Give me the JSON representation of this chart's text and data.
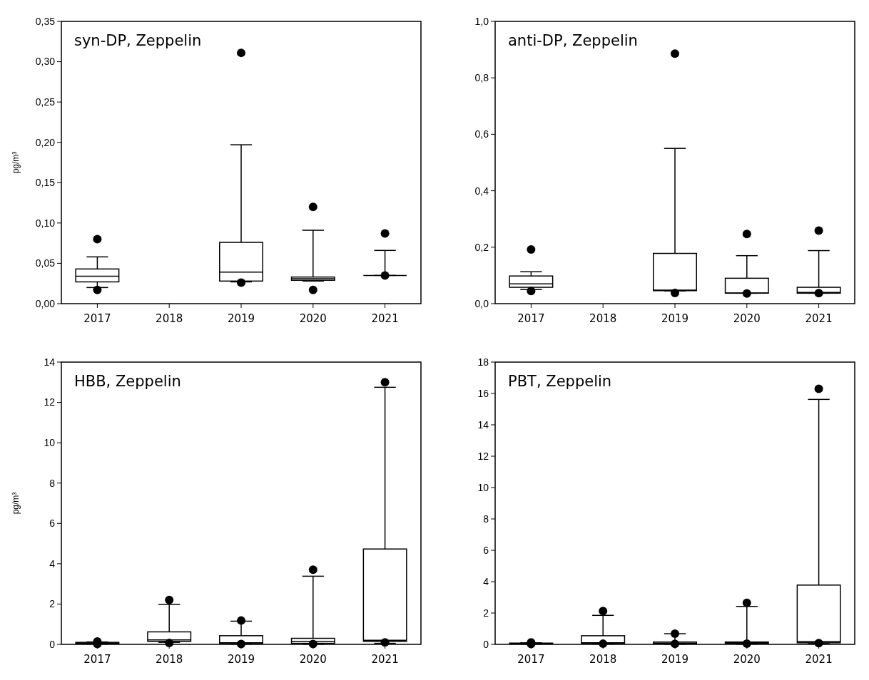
{
  "chart_data": [
    {
      "type": "box",
      "title": "syn-DP,  Zeppelin",
      "ylabel": "pg/m³",
      "categories": [
        "2017",
        "2018",
        "2019",
        "2020",
        "2021"
      ],
      "ylim": [
        0,
        0.35
      ],
      "yticks": [
        {
          "value": 0,
          "label": "0,00"
        },
        {
          "value": 0.05,
          "label": "0,05"
        },
        {
          "value": 0.1,
          "label": "0,10"
        },
        {
          "value": 0.15,
          "label": "0,15"
        },
        {
          "value": 0.2,
          "label": "0,20"
        },
        {
          "value": 0.25,
          "label": "0,25"
        },
        {
          "value": 0.3,
          "label": "0,30"
        },
        {
          "value": 0.35,
          "label": "0,35"
        }
      ],
      "boxes": [
        {
          "low": 0.02,
          "q1": 0.027,
          "median": 0.034,
          "q3": 0.043,
          "high": 0.058,
          "outliers": [
            0.08,
            0.017
          ]
        },
        null,
        {
          "low": 0.027,
          "q1": 0.028,
          "median": 0.039,
          "q3": 0.076,
          "high": 0.197,
          "outliers": [
            0.311,
            0.026
          ]
        },
        {
          "low": 0.028,
          "q1": 0.029,
          "median": 0.031,
          "q3": 0.033,
          "high": 0.091,
          "outliers": [
            0.12,
            0.017
          ]
        },
        {
          "low": 0.035,
          "q1": 0.035,
          "median": 0.035,
          "q3": 0.035,
          "high": 0.066,
          "outliers": [
            0.087,
            0.035
          ]
        }
      ]
    },
    {
      "type": "box",
      "title": "anti-DP,  Zeppelin",
      "categories": [
        "2017",
        "2018",
        "2019",
        "2020",
        "2021"
      ],
      "ylim": [
        0,
        1.0
      ],
      "yticks": [
        {
          "value": 0,
          "label": "0,0"
        },
        {
          "value": 0.2,
          "label": "0,2"
        },
        {
          "value": 0.4,
          "label": "0,4"
        },
        {
          "value": 0.6,
          "label": "0,6"
        },
        {
          "value": 0.8,
          "label": "0,8"
        },
        {
          "value": 1.0,
          "label": "1,0"
        }
      ],
      "boxes": [
        {
          "low": 0.05,
          "q1": 0.058,
          "median": 0.07,
          "q3": 0.098,
          "high": 0.113,
          "outliers": [
            0.192,
            0.045
          ]
        },
        null,
        {
          "low": 0.045,
          "q1": 0.046,
          "median": 0.048,
          "q3": 0.178,
          "high": 0.55,
          "outliers": [
            0.886,
            0.038
          ]
        },
        {
          "low": 0.037,
          "q1": 0.037,
          "median": 0.038,
          "q3": 0.09,
          "high": 0.17,
          "outliers": [
            0.247,
            0.036
          ]
        },
        {
          "low": 0.037,
          "q1": 0.037,
          "median": 0.04,
          "q3": 0.058,
          "high": 0.188,
          "outliers": [
            0.259,
            0.037
          ]
        }
      ]
    },
    {
      "type": "box",
      "title": "HBB, Zeppelin",
      "ylabel": "pg/m³",
      "categories": [
        "2017",
        "2018",
        "2019",
        "2020",
        "2021"
      ],
      "ylim": [
        0,
        14
      ],
      "yticks": [
        0,
        2,
        4,
        6,
        8,
        10,
        12,
        14
      ],
      "boxes": [
        {
          "low": 0.02,
          "q1": 0.03,
          "median": 0.06,
          "q3": 0.1,
          "high": 0.12,
          "outliers": [
            0.14,
            0.02
          ]
        },
        {
          "low": 0.1,
          "q1": 0.15,
          "median": 0.22,
          "q3": 0.62,
          "high": 1.98,
          "outliers": [
            2.2,
            0.07
          ]
        },
        {
          "low": 0.02,
          "q1": 0.04,
          "median": 0.08,
          "q3": 0.43,
          "high": 1.15,
          "outliers": [
            1.18,
            0.02
          ]
        },
        {
          "low": 0.02,
          "q1": 0.05,
          "median": 0.15,
          "q3": 0.3,
          "high": 3.38,
          "outliers": [
            3.7,
            0.02
          ]
        },
        {
          "low": 0.05,
          "q1": 0.15,
          "median": 0.2,
          "q3": 4.73,
          "high": 12.75,
          "outliers": [
            13.0,
            0.1
          ]
        }
      ]
    },
    {
      "type": "box",
      "title": "PBT, Zeppelin",
      "categories": [
        "2017",
        "2018",
        "2019",
        "2020",
        "2021"
      ],
      "ylim": [
        0,
        18
      ],
      "yticks": [
        0,
        2,
        4,
        6,
        8,
        10,
        12,
        14,
        16,
        18
      ],
      "boxes": [
        {
          "low": 0.02,
          "q1": 0.03,
          "median": 0.05,
          "q3": 0.08,
          "high": 0.1,
          "outliers": [
            0.12,
            0.02
          ]
        },
        {
          "low": 0.03,
          "q1": 0.06,
          "median": 0.1,
          "q3": 0.55,
          "high": 1.85,
          "outliers": [
            2.12,
            0.04
          ]
        },
        {
          "low": 0.02,
          "q1": 0.04,
          "median": 0.08,
          "q3": 0.15,
          "high": 0.68,
          "outliers": [
            0.68,
            0.03
          ]
        },
        {
          "low": 0.03,
          "q1": 0.06,
          "median": 0.1,
          "q3": 0.15,
          "high": 2.42,
          "outliers": [
            2.65,
            0.05
          ]
        },
        {
          "low": 0.05,
          "q1": 0.1,
          "median": 0.18,
          "q3": 3.78,
          "high": 15.62,
          "outliers": [
            16.3,
            0.08
          ]
        }
      ]
    }
  ]
}
